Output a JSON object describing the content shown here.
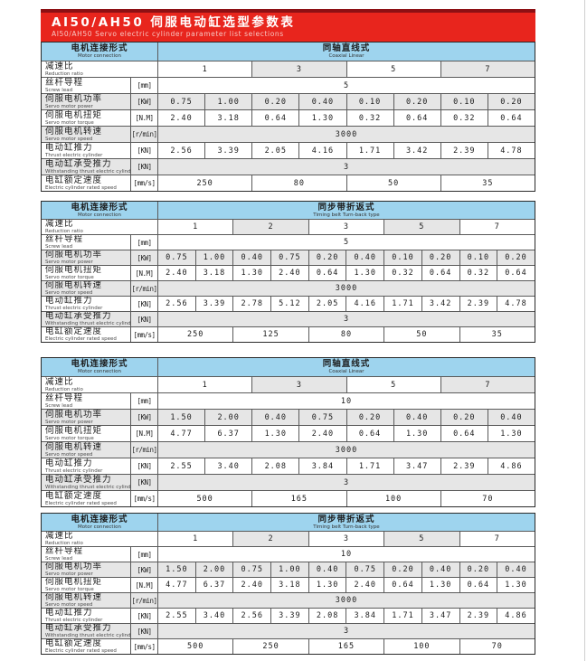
{
  "page": {
    "title_zh": "AI50/AH50 伺服电动缸选型参数表",
    "title_en": "AI50/AH50 Servo electric cylinder parameter list selections"
  },
  "colors": {
    "banner_red": "#e8251d",
    "header_blue": "#9ed4ee",
    "row_shade": "#e6e6e6"
  },
  "labels": {
    "motor_connection": {
      "zh": "电机连接形式",
      "en": "Motor connection"
    },
    "row_defs": [
      {
        "key": "ratios",
        "zh": "减速比",
        "en": "Reduction ratio",
        "unit": ""
      },
      {
        "key": "lead",
        "zh": "丝杆导程",
        "en": "Screw lead",
        "unit": "[mm]"
      },
      {
        "key": "power",
        "zh": "伺服电机功率",
        "en": "Servo motor power",
        "unit": "[KW]"
      },
      {
        "key": "torque",
        "zh": "伺服电机扭矩",
        "en": "Servo motor torque",
        "unit": "[N.M]"
      },
      {
        "key": "speed",
        "zh": "伺服电机转速",
        "en": "Servo motor speed",
        "unit": "[r/min]"
      },
      {
        "key": "thrust",
        "zh": "电动缸推力",
        "en": "Thrust electric cylinder",
        "unit": "[KN]"
      },
      {
        "key": "withstand",
        "zh": "电动缸承受推力",
        "en": "Withstanding thrust electric cylinder",
        "unit": "[KN]"
      },
      {
        "key": "rated_speed",
        "zh": "电缸额定速度",
        "en": "Electric cylinder rated speed",
        "unit": "[mm/s]"
      }
    ]
  },
  "tables": [
    {
      "type": {
        "zh": "同轴直线式",
        "en": "Coaxial Linear"
      },
      "ratios": [
        "1",
        "3",
        "5",
        "7"
      ],
      "lead": "5",
      "power": [
        "0.75",
        "1.00",
        "0.20",
        "0.40",
        "0.10",
        "0.20",
        "0.10",
        "0.20"
      ],
      "torque": [
        "2.40",
        "3.18",
        "0.64",
        "1.30",
        "0.32",
        "0.64",
        "0.32",
        "0.64"
      ],
      "speed": "3000",
      "thrust": [
        "2.56",
        "3.39",
        "2.05",
        "4.16",
        "1.71",
        "3.42",
        "2.39",
        "4.78"
      ],
      "withstand": "3",
      "rated_speed": [
        "250",
        "80",
        "50",
        "35"
      ]
    },
    {
      "type": {
        "zh": "同步带折返式",
        "en": "Timing belt Turn-back type"
      },
      "ratios": [
        "1",
        "2",
        "3",
        "5",
        "7"
      ],
      "lead": "5",
      "power": [
        "0.75",
        "1.00",
        "0.40",
        "0.75",
        "0.20",
        "0.40",
        "0.10",
        "0.20",
        "0.10",
        "0.20"
      ],
      "torque": [
        "2.40",
        "3.18",
        "1.30",
        "2.40",
        "0.64",
        "1.30",
        "0.32",
        "0.64",
        "0.32",
        "0.64"
      ],
      "speed": "3000",
      "thrust": [
        "2.56",
        "3.39",
        "2.78",
        "5.12",
        "2.05",
        "4.16",
        "1.71",
        "3.42",
        "2.39",
        "4.78"
      ],
      "withstand": "3",
      "rated_speed": [
        "250",
        "125",
        "80",
        "50",
        "35"
      ]
    },
    {
      "type": {
        "zh": "同轴直线式",
        "en": "Coaxial Linear"
      },
      "ratios": [
        "1",
        "3",
        "5",
        "7"
      ],
      "lead": "10",
      "power": [
        "1.50",
        "2.00",
        "0.40",
        "0.75",
        "0.20",
        "0.40",
        "0.20",
        "0.40"
      ],
      "torque": [
        "4.77",
        "6.37",
        "1.30",
        "2.40",
        "0.64",
        "1.30",
        "0.64",
        "1.30"
      ],
      "speed": "3000",
      "thrust": [
        "2.55",
        "3.40",
        "2.08",
        "3.84",
        "1.71",
        "3.47",
        "2.39",
        "4.86"
      ],
      "withstand": "3",
      "rated_speed": [
        "500",
        "165",
        "100",
        "70"
      ]
    },
    {
      "type": {
        "zh": "同步带折返式",
        "en": "Timing belt Turn-back type"
      },
      "ratios": [
        "1",
        "2",
        "3",
        "5",
        "7"
      ],
      "lead": "10",
      "power": [
        "1.50",
        "2.00",
        "0.75",
        "1.00",
        "0.40",
        "0.75",
        "0.20",
        "0.40",
        "0.20",
        "0.40"
      ],
      "torque": [
        "4.77",
        "6.37",
        "2.40",
        "3.18",
        "1.30",
        "2.40",
        "0.64",
        "1.30",
        "0.64",
        "1.30"
      ],
      "speed": "3000",
      "thrust": [
        "2.55",
        "3.40",
        "2.56",
        "3.39",
        "2.08",
        "3.84",
        "1.71",
        "3.47",
        "2.39",
        "4.86"
      ],
      "withstand": "3",
      "rated_speed": [
        "500",
        "250",
        "165",
        "100",
        "70"
      ]
    }
  ]
}
